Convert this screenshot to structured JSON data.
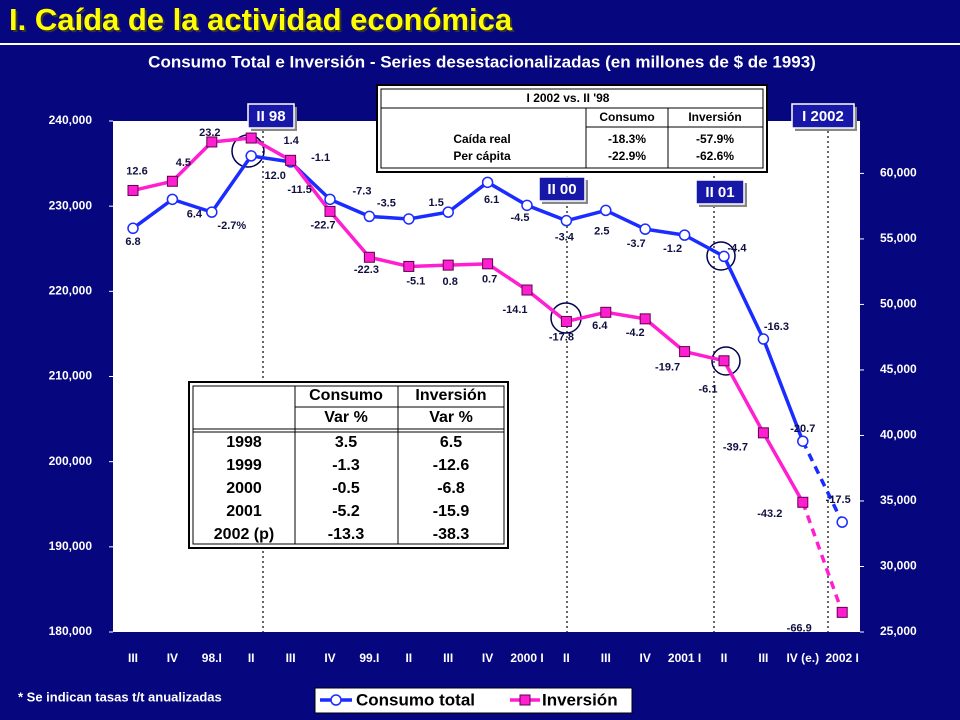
{
  "chart_data": {
    "type": "line",
    "title": "I. Caída de la actividad económica",
    "subtitle": "Consumo Total e Inversión - Series desestacionalizadas (en millones de $ de 1993)",
    "categories": [
      "III",
      "IV",
      "98.I",
      "II",
      "III",
      "IV",
      "99.I",
      "II",
      "III",
      "IV",
      "2000 I",
      "II",
      "III",
      "IV",
      "2001 I",
      "II",
      "III",
      "IV (e.)",
      "2002 I"
    ],
    "series": [
      {
        "name": "Consumo total",
        "color": "#1a2cff",
        "axis": "y",
        "values": [
          227400,
          230800,
          229300,
          235900,
          235200,
          230800,
          228800,
          228500,
          229300,
          232800,
          230100,
          228300,
          229500,
          227300,
          226600,
          224100,
          214400,
          202400,
          192900
        ],
        "rate_labels": [
          "6.8",
          "6.4",
          "-2.7%",
          "12.0",
          "-1.1",
          "-7.3",
          "-3.5",
          null,
          "1.5",
          "6.1",
          "-4.5",
          "-3.4",
          "2.5",
          "-3.7",
          "-1.2",
          "-4.4",
          "-16.3",
          "-20.7",
          "-17.5"
        ]
      },
      {
        "name": "Inversión",
        "color": "#ff1fd0",
        "axis": "y2",
        "values": [
          58700,
          59400,
          62400,
          62700,
          61000,
          57100,
          53600,
          52900,
          53000,
          53100,
          51100,
          48700,
          49400,
          48900,
          46400,
          45700,
          40200,
          34900,
          26500
        ],
        "rate_labels": [
          "12.6",
          "4.5",
          "23.2",
          "1.4",
          "-11.5",
          "-22.7",
          "-22.3",
          "-5.1",
          "0.8",
          "0.7",
          "-14.1",
          "-17.8",
          "6.4",
          "-4.2",
          "-19.7",
          "-6.1",
          "-39.7",
          "-43.2",
          "-66.9"
        ]
      }
    ],
    "ylim": [
      180000,
      240000
    ],
    "yticks": [
      {
        "value": 180000,
        "label": "180,000"
      },
      {
        "value": 190000,
        "label": "190,000"
      },
      {
        "value": 200000,
        "label": "200,000"
      },
      {
        "value": 210000,
        "label": "210,000"
      },
      {
        "value": 220000,
        "label": "220,000"
      },
      {
        "value": 230000,
        "label": "230,000"
      },
      {
        "value": 240000,
        "label": "240,000"
      }
    ],
    "y2lim": [
      25000,
      64000
    ],
    "y2ticks": [
      {
        "value": 25000,
        "label": "25,000"
      },
      {
        "value": 30000,
        "label": "30,000"
      },
      {
        "value": 35000,
        "label": "35,000"
      },
      {
        "value": 40000,
        "label": "40,000"
      },
      {
        "value": 45000,
        "label": "45,000"
      },
      {
        "value": 50000,
        "label": "50,000"
      },
      {
        "value": 55000,
        "label": "55,000"
      },
      {
        "value": 60000,
        "label": "60,000"
      }
    ],
    "period_labels": [
      "II 98",
      "II 00",
      "II 01",
      "I 2002"
    ],
    "note": "* Se indican tasas t/t anualizadas",
    "grid": false
  },
  "summary_table": {
    "title": "I 2002 vs. II '98",
    "columns": [
      "Consumo",
      "Inversión"
    ],
    "rows": [
      [
        "Caída real",
        "-18.3%",
        "-57.9%"
      ],
      [
        "Per cápita",
        "-22.9%",
        "-62.6%"
      ]
    ]
  },
  "annual_table": {
    "columns": [
      "Consumo",
      "Inversión"
    ],
    "subcolumns": [
      "Var %",
      "Var %"
    ],
    "rows": [
      [
        "1998",
        3.5,
        6.5
      ],
      [
        "1999",
        -1.3,
        -12.6
      ],
      [
        "2000",
        -0.5,
        -6.8
      ],
      [
        "2001",
        -5.2,
        -15.9
      ],
      [
        "2002 (p)",
        -13.3,
        -38.3
      ]
    ]
  }
}
